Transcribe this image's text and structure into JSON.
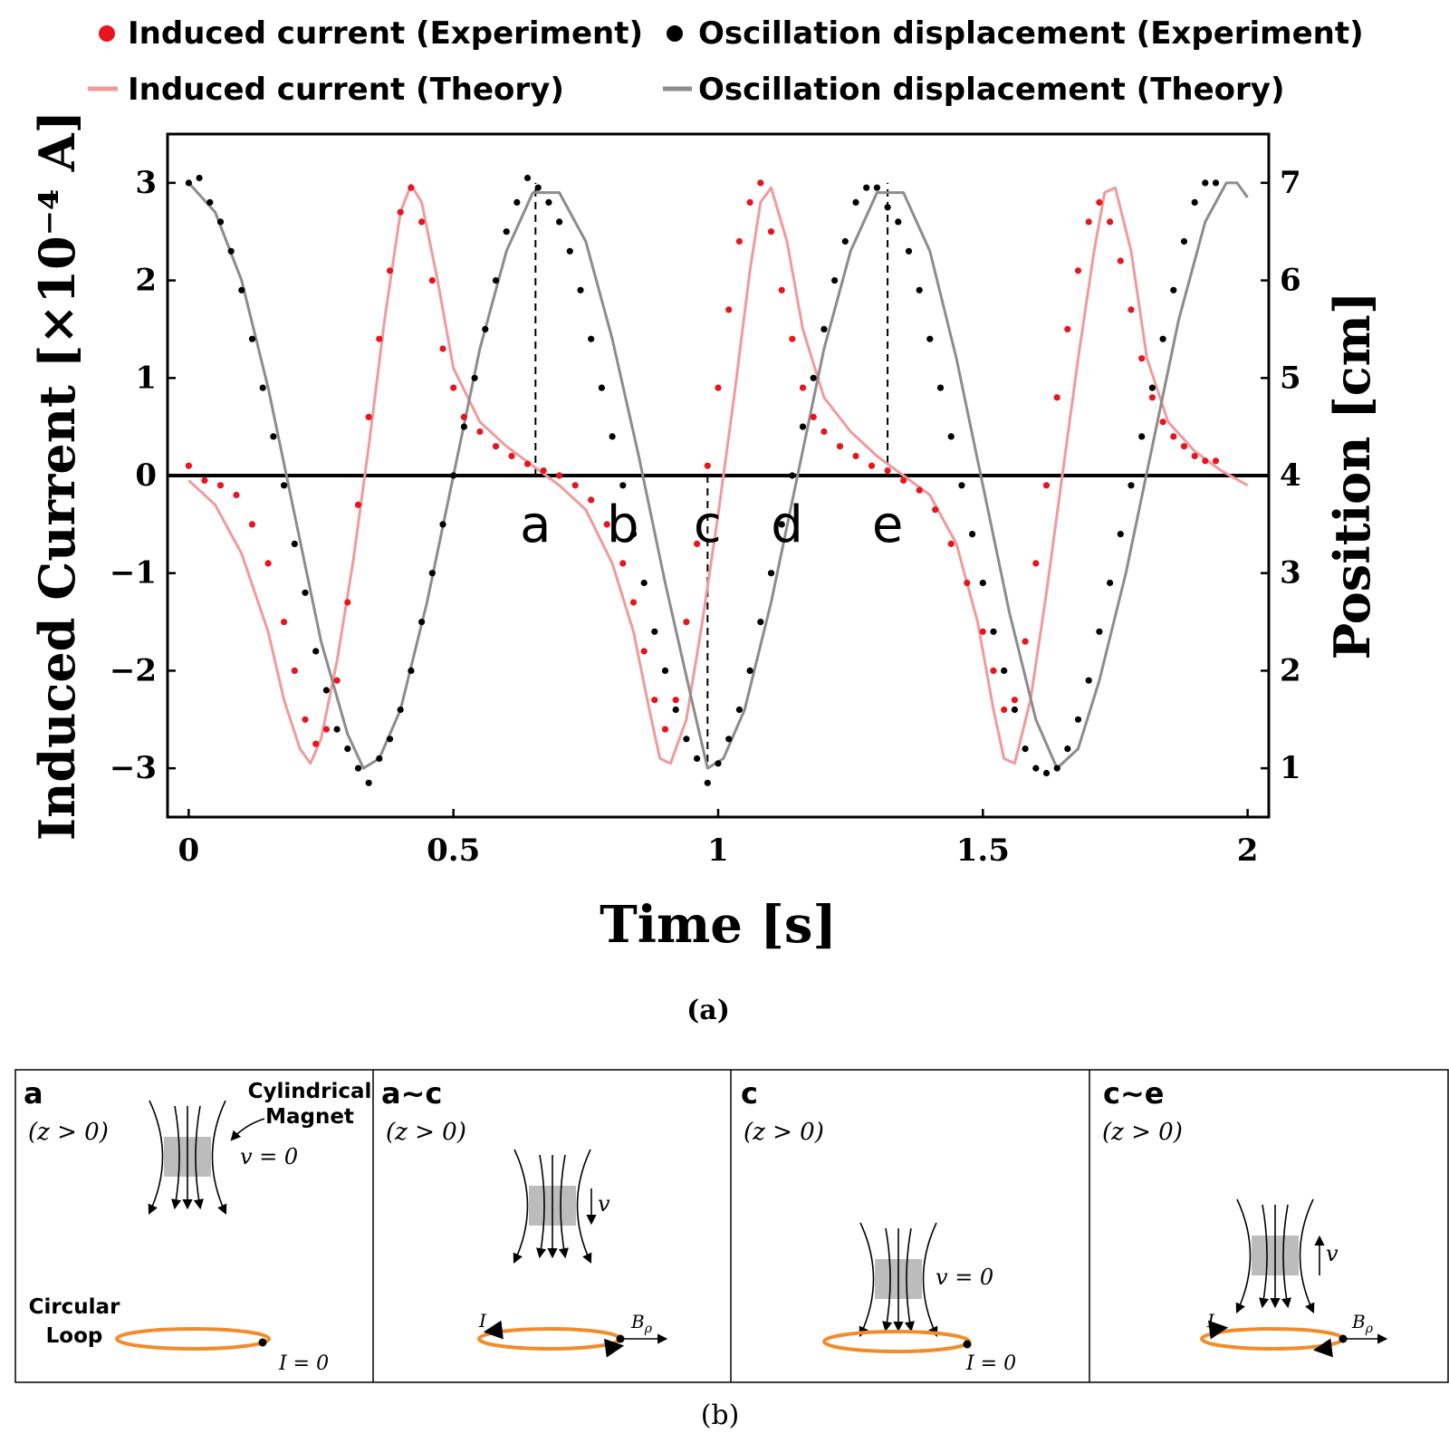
{
  "figure_a": {
    "caption": "(a)",
    "legend": [
      {
        "label": "Induced current (Experiment)",
        "kind": "dot",
        "color": "#e8141e"
      },
      {
        "label": "Oscillation displacement (Experiment)",
        "kind": "dot",
        "color": "#000000"
      },
      {
        "label": "Induced current (Theory)",
        "kind": "line",
        "color": "#f19a9c"
      },
      {
        "label": "Oscillation displacement (Theory)",
        "kind": "line",
        "color": "#8c8c8c"
      }
    ],
    "marker_labels": [
      {
        "label": "a",
        "t": 0.655
      },
      {
        "label": "b",
        "t": 0.82
      },
      {
        "label": "c",
        "t": 0.98
      },
      {
        "label": "d",
        "t": 1.13
      },
      {
        "label": "e",
        "t": 1.32
      }
    ],
    "dashed_lines": [
      {
        "t": 0.655,
        "position": 7.0
      },
      {
        "t": 0.98,
        "position": 1.0
      },
      {
        "t": 1.32,
        "position": 7.0
      }
    ]
  },
  "chart_data": {
    "type": "scatter",
    "xlabel": "Time [s]",
    "ylabel": "Induced Current [×10⁻⁴ A]",
    "y2label": "Position [cm]",
    "xlim": [
      -0.04,
      2.04
    ],
    "ylim": [
      -3.5,
      3.5
    ],
    "y2lim": [
      0.5,
      7.5
    ],
    "x_ticks": [
      0,
      0.5,
      1,
      1.5,
      2
    ],
    "x_tick_labels": [
      "0",
      "0.5",
      "1",
      "1.5",
      "2"
    ],
    "y_ticks": [
      3,
      2,
      1,
      0,
      -1,
      -2,
      -3
    ],
    "y_tick_labels": [
      "3",
      "2",
      "1",
      "0",
      "−1",
      "−2",
      "−3"
    ],
    "y2_ticks": [
      7,
      6,
      5,
      4,
      3,
      2,
      1
    ],
    "y2_tick_labels": [
      "7",
      "6",
      "5",
      "4",
      "3",
      "2",
      "1"
    ],
    "grid": false,
    "legend_position": "top",
    "series": [
      {
        "name": "Induced current (Experiment)",
        "kind": "scatter",
        "axis": "left",
        "color": "#e8141e",
        "x": [
          0.0,
          0.03,
          0.06,
          0.09,
          0.12,
          0.15,
          0.18,
          0.2,
          0.22,
          0.24,
          0.26,
          0.28,
          0.3,
          0.32,
          0.34,
          0.36,
          0.38,
          0.4,
          0.42,
          0.44,
          0.46,
          0.48,
          0.5,
          0.52,
          0.55,
          0.58,
          0.61,
          0.64,
          0.67,
          0.7,
          0.73,
          0.76,
          0.79,
          0.82,
          0.84,
          0.86,
          0.88,
          0.9,
          0.92,
          0.94,
          0.96,
          0.98,
          1.0,
          1.02,
          1.04,
          1.06,
          1.08,
          1.1,
          1.12,
          1.14,
          1.16,
          1.18,
          1.2,
          1.23,
          1.26,
          1.29,
          1.32,
          1.35,
          1.38,
          1.41,
          1.44,
          1.47,
          1.5,
          1.52,
          1.54,
          1.56,
          1.58,
          1.6,
          1.62,
          1.64,
          1.66,
          1.68,
          1.7,
          1.72,
          1.74,
          1.76,
          1.78,
          1.8,
          1.82,
          1.84,
          1.86,
          1.88,
          1.9,
          1.92,
          1.94
        ],
        "y": [
          0.1,
          -0.05,
          -0.1,
          -0.2,
          -0.5,
          -0.9,
          -1.5,
          -2.0,
          -2.5,
          -2.75,
          -2.6,
          -2.1,
          -1.3,
          -0.3,
          0.6,
          1.4,
          2.1,
          2.7,
          2.95,
          2.6,
          2.0,
          1.3,
          0.9,
          0.6,
          0.45,
          0.3,
          0.2,
          0.12,
          0.05,
          0.0,
          -0.1,
          -0.25,
          -0.5,
          -0.9,
          -1.3,
          -1.8,
          -2.3,
          -2.6,
          -2.3,
          -1.5,
          -0.7,
          0.1,
          0.9,
          1.7,
          2.4,
          2.8,
          3.0,
          2.5,
          1.9,
          1.4,
          0.9,
          0.6,
          0.45,
          0.3,
          0.2,
          0.1,
          0.05,
          -0.05,
          -0.15,
          -0.35,
          -0.7,
          -1.1,
          -1.6,
          -2.0,
          -2.4,
          -2.3,
          -1.7,
          -0.9,
          -0.1,
          0.8,
          1.5,
          2.1,
          2.6,
          2.8,
          2.6,
          2.2,
          1.7,
          1.2,
          0.8,
          0.55,
          0.4,
          0.3,
          0.2,
          0.15,
          0.15
        ]
      },
      {
        "name": "Oscillation displacement (Experiment)",
        "kind": "scatter",
        "axis": "right",
        "color": "#000000",
        "x": [
          0.0,
          0.02,
          0.04,
          0.06,
          0.08,
          0.1,
          0.12,
          0.14,
          0.16,
          0.18,
          0.2,
          0.22,
          0.24,
          0.26,
          0.28,
          0.3,
          0.32,
          0.34,
          0.36,
          0.38,
          0.4,
          0.42,
          0.44,
          0.46,
          0.48,
          0.5,
          0.52,
          0.54,
          0.56,
          0.58,
          0.6,
          0.62,
          0.64,
          0.66,
          0.68,
          0.7,
          0.72,
          0.74,
          0.76,
          0.78,
          0.8,
          0.82,
          0.84,
          0.86,
          0.88,
          0.9,
          0.92,
          0.94,
          0.96,
          0.98,
          1.0,
          1.02,
          1.04,
          1.06,
          1.08,
          1.1,
          1.12,
          1.14,
          1.16,
          1.18,
          1.2,
          1.22,
          1.24,
          1.26,
          1.28,
          1.3,
          1.32,
          1.34,
          1.36,
          1.38,
          1.4,
          1.42,
          1.44,
          1.46,
          1.48,
          1.5,
          1.52,
          1.54,
          1.56,
          1.58,
          1.6,
          1.62,
          1.64,
          1.66,
          1.68,
          1.7,
          1.72,
          1.74,
          1.76,
          1.78,
          1.8,
          1.82,
          1.84,
          1.86,
          1.88,
          1.9,
          1.92,
          1.94
        ],
        "y": [
          7.0,
          7.05,
          6.8,
          6.6,
          6.3,
          5.9,
          5.4,
          4.9,
          4.4,
          3.9,
          3.3,
          2.8,
          2.2,
          1.8,
          1.4,
          1.2,
          1.0,
          0.85,
          1.1,
          1.3,
          1.6,
          2.0,
          2.5,
          3.0,
          3.5,
          4.0,
          4.5,
          5.0,
          5.5,
          6.0,
          6.5,
          6.8,
          7.05,
          6.95,
          6.8,
          6.6,
          6.3,
          5.9,
          5.4,
          4.9,
          4.4,
          3.9,
          3.4,
          2.9,
          2.4,
          2.0,
          1.6,
          1.3,
          1.1,
          0.85,
          1.05,
          1.3,
          1.6,
          2.0,
          2.5,
          3.0,
          3.5,
          4.0,
          4.5,
          5.0,
          5.5,
          6.0,
          6.4,
          6.8,
          6.95,
          6.95,
          6.75,
          6.6,
          6.3,
          5.9,
          5.4,
          4.9,
          4.4,
          3.9,
          3.4,
          2.9,
          2.4,
          2.0,
          1.6,
          1.2,
          1.0,
          0.95,
          1.0,
          1.2,
          1.5,
          1.9,
          2.4,
          2.9,
          3.4,
          3.9,
          4.4,
          4.9,
          5.4,
          5.9,
          6.4,
          6.8,
          7.0,
          7.0
        ]
      },
      {
        "name": "Induced current (Theory)",
        "kind": "line",
        "axis": "left",
        "color": "#f19a9c",
        "x": [
          0.0,
          0.05,
          0.1,
          0.15,
          0.18,
          0.21,
          0.23,
          0.25,
          0.28,
          0.31,
          0.34,
          0.37,
          0.4,
          0.42,
          0.44,
          0.47,
          0.5,
          0.55,
          0.6,
          0.65,
          0.7,
          0.75,
          0.8,
          0.84,
          0.87,
          0.89,
          0.91,
          0.94,
          0.97,
          1.0,
          1.03,
          1.06,
          1.08,
          1.1,
          1.13,
          1.16,
          1.2,
          1.25,
          1.3,
          1.35,
          1.4,
          1.45,
          1.49,
          1.52,
          1.54,
          1.56,
          1.59,
          1.62,
          1.65,
          1.68,
          1.71,
          1.73,
          1.75,
          1.78,
          1.81,
          1.85,
          1.9,
          1.95,
          2.0
        ],
        "y": [
          -0.05,
          -0.3,
          -0.8,
          -1.6,
          -2.3,
          -2.8,
          -2.95,
          -2.7,
          -1.9,
          -0.9,
          0.3,
          1.6,
          2.7,
          2.98,
          2.8,
          2.0,
          1.1,
          0.55,
          0.3,
          0.1,
          -0.1,
          -0.35,
          -0.9,
          -1.6,
          -2.4,
          -2.9,
          -2.95,
          -2.5,
          -1.5,
          -0.4,
          0.8,
          2.1,
          2.8,
          2.95,
          2.4,
          1.5,
          0.8,
          0.45,
          0.2,
          0.0,
          -0.2,
          -0.7,
          -1.5,
          -2.4,
          -2.9,
          -2.95,
          -2.3,
          -1.2,
          0.0,
          1.2,
          2.3,
          2.9,
          2.95,
          2.3,
          1.2,
          0.55,
          0.25,
          0.05,
          -0.1
        ]
      },
      {
        "name": "Oscillation displacement (Theory)",
        "kind": "line",
        "axis": "right",
        "color": "#8c8c8c",
        "x": [
          0.0,
          0.05,
          0.1,
          0.15,
          0.2,
          0.25,
          0.3,
          0.33,
          0.36,
          0.4,
          0.45,
          0.5,
          0.55,
          0.6,
          0.65,
          0.7,
          0.75,
          0.8,
          0.85,
          0.9,
          0.95,
          0.98,
          1.01,
          1.05,
          1.1,
          1.15,
          1.2,
          1.25,
          1.3,
          1.35,
          1.4,
          1.45,
          1.5,
          1.55,
          1.6,
          1.64,
          1.68,
          1.72,
          1.77,
          1.82,
          1.87,
          1.92,
          1.96,
          1.98,
          2.0
        ],
        "y": [
          7.0,
          6.7,
          6.0,
          4.9,
          3.6,
          2.3,
          1.35,
          1.0,
          1.1,
          1.6,
          2.7,
          4.0,
          5.3,
          6.3,
          6.9,
          6.9,
          6.4,
          5.4,
          4.2,
          2.9,
          1.7,
          1.0,
          1.1,
          1.6,
          2.7,
          4.0,
          5.3,
          6.3,
          6.9,
          6.9,
          6.3,
          5.2,
          3.9,
          2.6,
          1.5,
          1.0,
          1.2,
          1.9,
          3.0,
          4.3,
          5.6,
          6.6,
          7.0,
          7.0,
          6.85
        ]
      }
    ]
  },
  "figure_b": {
    "caption": "(b)",
    "panels": [
      {
        "title": "a",
        "condition": "(z > 0)",
        "velocity": "v = 0",
        "magnet_label_line1": "Cylindrical",
        "magnet_label_line2": "Magnet",
        "loop_label_line1": "Circular",
        "loop_label_line2": "Loop",
        "current": "I = 0"
      },
      {
        "title": "a~c",
        "condition": "(z > 0)",
        "velocity": "v",
        "current": "I",
        "field": "B",
        "field_sub": "ρ"
      },
      {
        "title": "c",
        "condition": "(z > 0)",
        "velocity": "v = 0",
        "current": "I = 0"
      },
      {
        "title": "c~e",
        "condition": "(z > 0)",
        "velocity": "v",
        "current": "I",
        "field": "B",
        "field_sub": "ρ"
      }
    ]
  }
}
